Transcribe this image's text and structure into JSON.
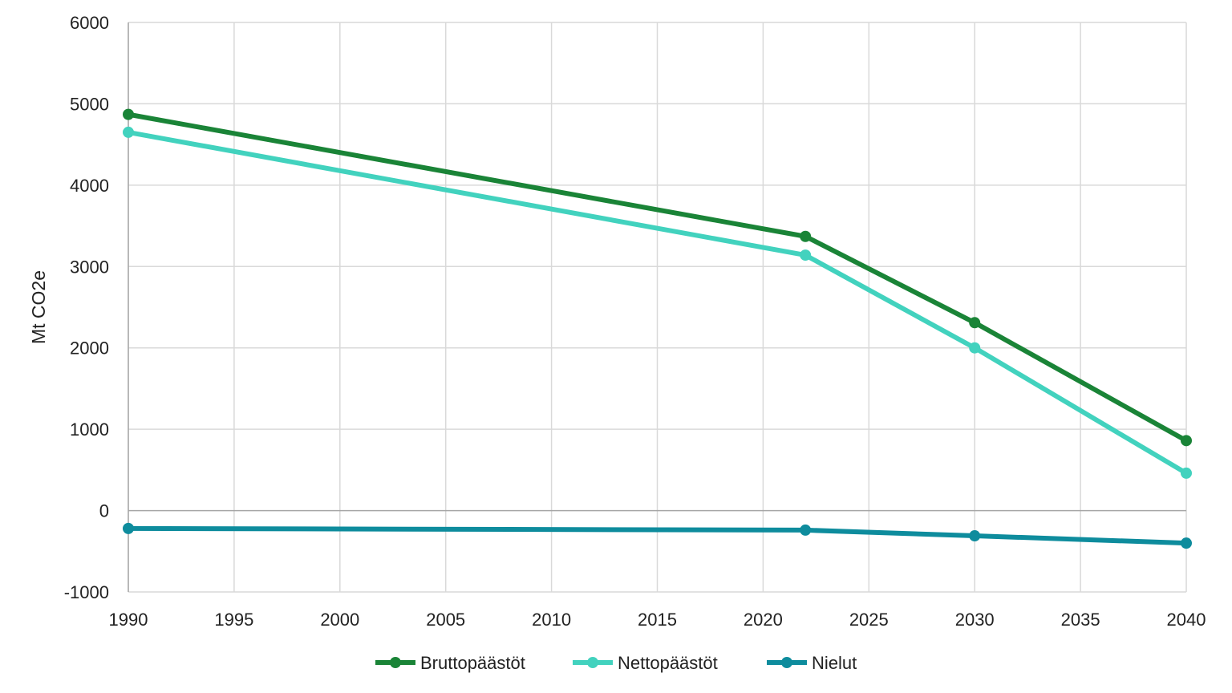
{
  "chart_data": {
    "type": "line",
    "title": "",
    "xlabel": "",
    "ylabel": "Mt CO2e",
    "xlim": [
      1990,
      2040
    ],
    "ylim": [
      -1000,
      6000
    ],
    "x_ticks": [
      "1990",
      "1995",
      "2000",
      "2005",
      "2010",
      "2015",
      "2020",
      "2025",
      "2030",
      "2035",
      "2040"
    ],
    "y_ticks": [
      "-1000",
      "0",
      "1000",
      "2000",
      "3000",
      "4000",
      "5000",
      "6000"
    ],
    "grid": true,
    "legend_position": "bottom",
    "series": [
      {
        "name": "Bruttopäästöt",
        "color": "#1a8437",
        "x": [
          1990,
          2022,
          2030,
          2040
        ],
        "y": [
          4870,
          3370,
          2310,
          860
        ]
      },
      {
        "name": "Nettopäästöt",
        "color": "#42d2be",
        "x": [
          1990,
          2022,
          2030,
          2040
        ],
        "y": [
          4650,
          3140,
          2000,
          460
        ]
      },
      {
        "name": "Nielut",
        "color": "#0e8c9d",
        "x": [
          1990,
          2022,
          2030,
          2040
        ],
        "y": [
          -220,
          -240,
          -310,
          -400
        ]
      }
    ]
  }
}
